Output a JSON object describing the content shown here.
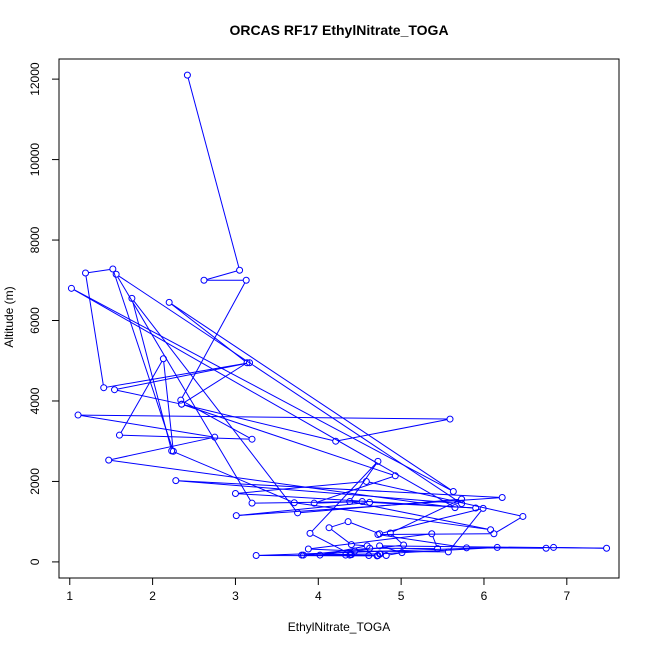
{
  "chart_data": {
    "type": "line",
    "title": "ORCAS RF17 EthylNitrate_TOGA",
    "xlabel": "EthylNitrate_TOGA",
    "ylabel": "Altitude (m)",
    "xlim": [
      0.87,
      7.63
    ],
    "ylim": [
      -400,
      12500
    ],
    "xticks": [
      1,
      2,
      3,
      4,
      5,
      6,
      7
    ],
    "yticks": [
      0,
      2000,
      4000,
      6000,
      8000,
      10000,
      12000
    ],
    "grid": false,
    "colors": {
      "series": "#0000ff",
      "axes": "#000000"
    },
    "series": [
      {
        "marker": "open-circle",
        "points": [
          [
            2.42,
            12100
          ],
          [
            3.05,
            7250
          ],
          [
            2.62,
            7000
          ],
          [
            3.13,
            7000
          ],
          [
            2.34,
            4020
          ],
          [
            3.2,
            3050
          ],
          [
            1.6,
            3150
          ],
          [
            2.13,
            5050
          ],
          [
            2.25,
            2750
          ],
          [
            1.52,
            7280
          ],
          [
            1.19,
            7180
          ],
          [
            1.41,
            4330
          ],
          [
            3.17,
            4950
          ],
          [
            1.54,
            4280
          ],
          [
            2.35,
            3920
          ],
          [
            4.21,
            3000
          ],
          [
            5.59,
            3550
          ],
          [
            1.1,
            3650
          ],
          [
            2.75,
            3100
          ],
          [
            1.47,
            2530
          ],
          [
            5.65,
            1350
          ],
          [
            1.02,
            6800
          ],
          [
            5.63,
            1750
          ],
          [
            2.2,
            6450
          ],
          [
            3.14,
            4950
          ],
          [
            2.35,
            3920
          ],
          [
            4.93,
            2140
          ],
          [
            3.95,
            1460
          ],
          [
            4.53,
            1500
          ],
          [
            3.2,
            1460
          ],
          [
            1.56,
            7150
          ],
          [
            5.73,
            1450
          ],
          [
            2.28,
            2020
          ],
          [
            6.22,
            1600
          ],
          [
            3.01,
            1150
          ],
          [
            4.62,
            1480
          ],
          [
            5.9,
            1340
          ],
          [
            3.0,
            1700
          ],
          [
            4.58,
            2000
          ],
          [
            6.47,
            1130
          ],
          [
            6.12,
            700
          ],
          [
            4.72,
            680
          ],
          [
            5.79,
            350
          ],
          [
            6.75,
            340
          ],
          [
            6.84,
            360
          ],
          [
            7.48,
            340
          ],
          [
            4.74,
            400
          ],
          [
            5.01,
            230
          ],
          [
            4.82,
            160
          ],
          [
            4.74,
            200
          ],
          [
            6.16,
            360
          ],
          [
            3.25,
            160
          ],
          [
            4.71,
            150
          ],
          [
            4.75,
            200
          ],
          [
            3.82,
            170
          ],
          [
            4.62,
            340
          ],
          [
            5.44,
            330
          ],
          [
            5.37,
            700
          ],
          [
            3.88,
            320
          ],
          [
            4.44,
            270
          ],
          [
            5.57,
            250
          ],
          [
            5.99,
            1330
          ],
          [
            4.74,
            700
          ],
          [
            4.36,
            1000
          ],
          [
            4.13,
            850
          ],
          [
            4.4,
            430
          ],
          [
            4.59,
            400
          ],
          [
            4.02,
            170
          ],
          [
            5.03,
            420
          ],
          [
            4.87,
            720
          ],
          [
            5.73,
            1560
          ],
          [
            3.75,
            1220
          ],
          [
            1.75,
            6550
          ],
          [
            2.23,
            2760
          ],
          [
            3.71,
            1470
          ],
          [
            6.08,
            800
          ],
          [
            4.38,
            1500
          ],
          [
            4.72,
            2500
          ],
          [
            3.9,
            710
          ],
          [
            4.4,
            180
          ],
          [
            3.8,
            170
          ],
          [
            4.61,
            160
          ],
          [
            4.72,
            160
          ],
          [
            4.33,
            170
          ],
          [
            4.38,
            170
          ]
        ]
      }
    ]
  }
}
